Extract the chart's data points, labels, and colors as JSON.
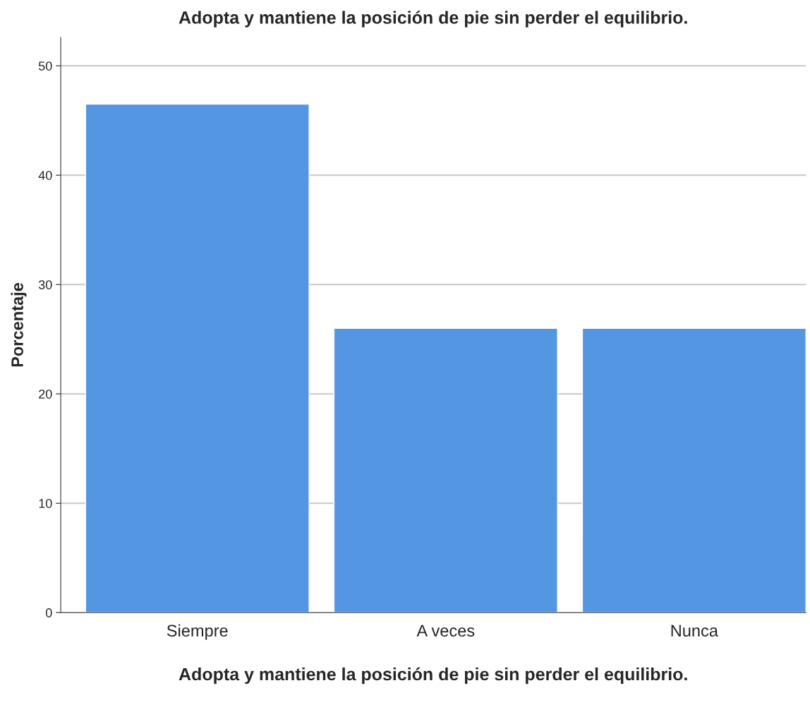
{
  "chart_data": {
    "type": "bar",
    "title": "Adopta y mantiene la posición de pie sin perder el equilibrio.",
    "xlabel": "Adopta y mantiene la posición de pie sin perder el equilibrio.",
    "ylabel": "Porcentaje",
    "categories": [
      "Siempre",
      "A veces",
      "Nunca"
    ],
    "values": [
      46.5,
      26,
      26
    ],
    "color": "#5596e3",
    "ylim": [
      0,
      52.6
    ],
    "yticks": [
      0,
      10,
      20,
      30,
      40,
      50
    ],
    "grid": "y",
    "legend": false
  }
}
